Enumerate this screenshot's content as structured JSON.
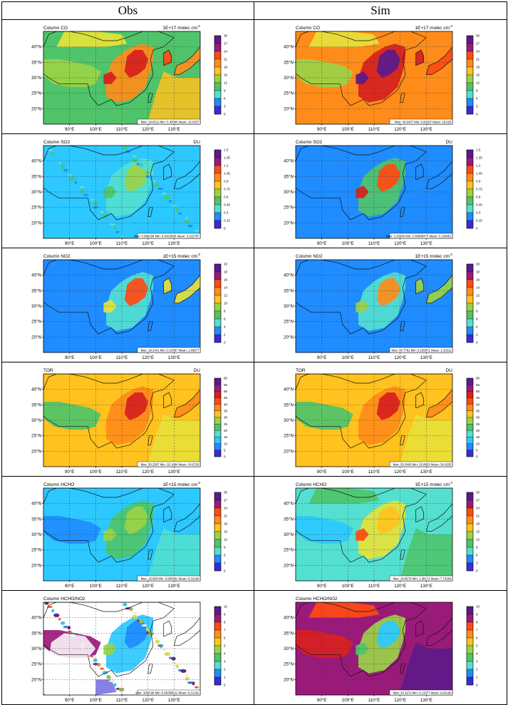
{
  "columns": [
    "Obs",
    "Sim"
  ],
  "lat_labels": [
    "40°N",
    "35°N",
    "30°N",
    "25°N",
    "20°N"
  ],
  "lon_labels": [
    "90°E",
    "100°E",
    "110°E",
    "120°E",
    "130°E"
  ],
  "rows": [
    {
      "title": "Column CO",
      "unit": "1E+17 molec cm",
      "unit_sup": "-2",
      "levels": [
        "30",
        "27",
        "24",
        "21",
        "18",
        "15",
        "12",
        "9",
        "6",
        "3",
        "0"
      ],
      "obs_stats": "Max: 29.6513  Min: 5.45065  Mean: 16.0337",
      "sim_stats": "Max: 40.8437  Min: 6.60267  Mean: 18.625"
    },
    {
      "title": "Column SO2",
      "unit": "DU",
      "unit_sup": "",
      "levels": [
        "1.5",
        "1.35",
        "1.2",
        "1.05",
        "0.9",
        "0.75",
        "0.6",
        "0.45",
        "0.3",
        "0.15",
        "0"
      ],
      "obs_stats": "Max: 0.888158  Min: 0.0423585  Mean: 0.222787",
      "sim_stats": "Max: 3.25568  Min: 0.00588473  Mean: 0.139851"
    },
    {
      "title": "Column NO2",
      "unit": "1E+15 molec cm",
      "unit_sup": "-2",
      "levels": [
        "20",
        "18",
        "16",
        "14",
        "12",
        "10",
        "8",
        "6",
        "4",
        "2",
        "0"
      ],
      "obs_stats": "Max: 29.2441  Min: 0.14587  Mean: 1.69577",
      "sim_stats": "Max: 34.7781  Min: 0.105871  Mean: 1.33311"
    },
    {
      "title": "TOR",
      "unit": "DU",
      "unit_sup": "",
      "levels": [
        "60",
        "55",
        "50",
        "45",
        "40",
        "35",
        "30",
        "25",
        "20",
        "15",
        "10",
        "5",
        "0"
      ],
      "obs_stats": "Max: 50.2587  Min: 20.1884  Mean: 34.6726",
      "sim_stats": "Max: 50.3406  Min: 20.8853  Mean: 34.0235"
    },
    {
      "title": "Column HCHO",
      "unit": "1E+15 molec cm",
      "unit_sup": "-2",
      "levels": [
        "30",
        "27",
        "24",
        "21",
        "18",
        "15",
        "12",
        "9",
        "6",
        "3",
        "0"
      ],
      "obs_stats": "Max: 15.858  Min: 0.860581  Mean: 6.16196",
      "sim_stats": "Max: 20.8578  Min: 1.36172  Mean: 7.74206"
    },
    {
      "title": "Column HCHO/NO2",
      "unit": "",
      "unit_sup": "",
      "levels": [
        "10",
        "9",
        "8",
        "7",
        "6",
        "5",
        "4",
        "3",
        "2",
        "1",
        "0"
      ],
      "obs_stats": "Max: 1058.86  Min: 5.00398512  Mean: 8.21202",
      "sim_stats": "Max: 43.1972  Min: 0.13377  Mean: 9.82196"
    }
  ]
}
